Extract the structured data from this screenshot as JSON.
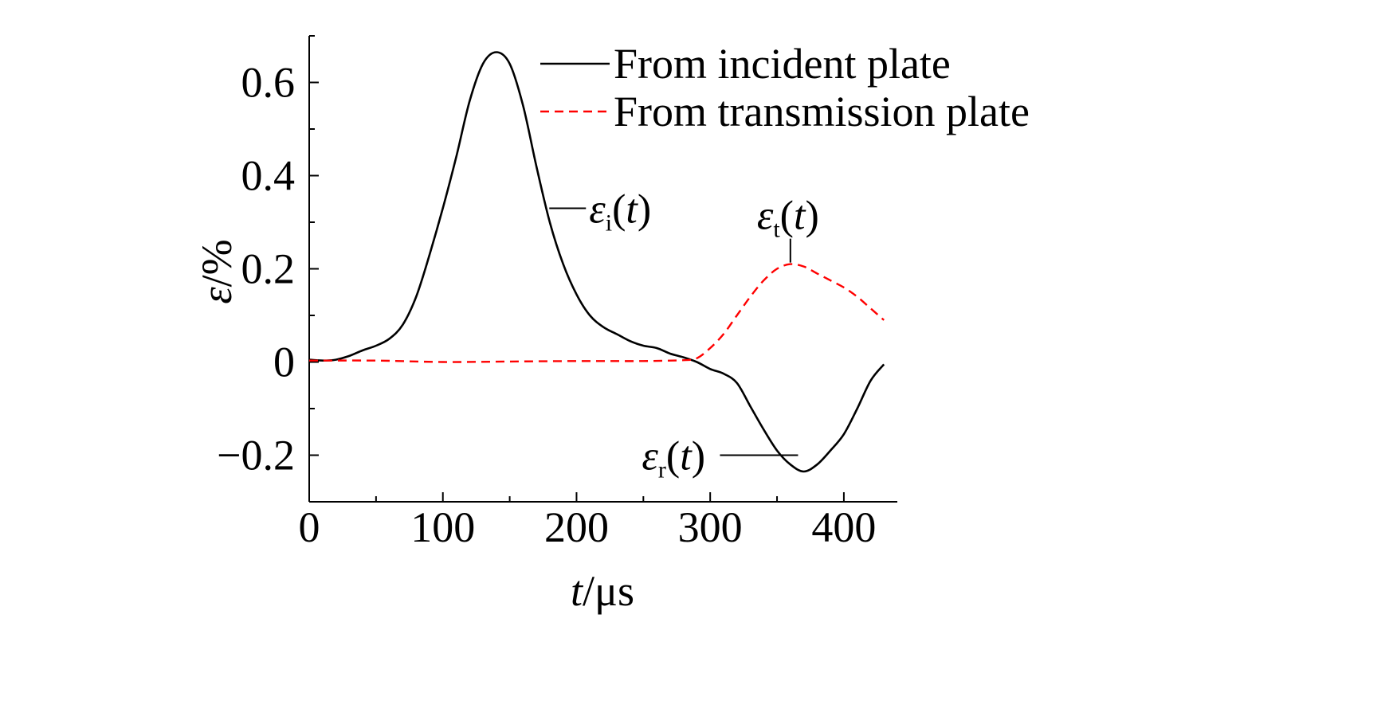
{
  "chart_data": {
    "type": "line",
    "xlim": [
      0,
      440
    ],
    "ylim": [
      -0.3,
      0.7
    ],
    "x_ticks": [
      0,
      100,
      200,
      300,
      400
    ],
    "x_tick_labels": [
      "0",
      "100",
      "200",
      "300",
      "400"
    ],
    "y_ticks": [
      -0.2,
      0,
      0.2,
      0.4,
      0.6
    ],
    "y_tick_labels": [
      "−0.2",
      "0",
      "0.2",
      "0.4",
      "0.6"
    ],
    "xlabel_var": "t",
    "xlabel_unit": "/μs",
    "ylabel_var": "ε",
    "ylabel_unit": "/%",
    "legend_placement": "top-right",
    "grid": false,
    "series": [
      {
        "name": "From incident plate",
        "color": "#000000",
        "dash": "solid",
        "points": [
          [
            0,
            0.005
          ],
          [
            10,
            0.003
          ],
          [
            20,
            0.005
          ],
          [
            30,
            0.013
          ],
          [
            40,
            0.025
          ],
          [
            50,
            0.035
          ],
          [
            60,
            0.05
          ],
          [
            70,
            0.08
          ],
          [
            80,
            0.14
          ],
          [
            90,
            0.23
          ],
          [
            100,
            0.33
          ],
          [
            110,
            0.44
          ],
          [
            120,
            0.56
          ],
          [
            130,
            0.64
          ],
          [
            140,
            0.665
          ],
          [
            150,
            0.64
          ],
          [
            160,
            0.55
          ],
          [
            170,
            0.42
          ],
          [
            180,
            0.3
          ],
          [
            190,
            0.21
          ],
          [
            200,
            0.145
          ],
          [
            210,
            0.1
          ],
          [
            220,
            0.075
          ],
          [
            230,
            0.06
          ],
          [
            240,
            0.045
          ],
          [
            250,
            0.035
          ],
          [
            260,
            0.03
          ],
          [
            270,
            0.018
          ],
          [
            280,
            0.01
          ],
          [
            290,
            0.0
          ],
          [
            300,
            -0.015
          ],
          [
            310,
            -0.025
          ],
          [
            320,
            -0.045
          ],
          [
            330,
            -0.095
          ],
          [
            340,
            -0.145
          ],
          [
            350,
            -0.19
          ],
          [
            360,
            -0.22
          ],
          [
            370,
            -0.235
          ],
          [
            380,
            -0.22
          ],
          [
            390,
            -0.19
          ],
          [
            400,
            -0.155
          ],
          [
            410,
            -0.1
          ],
          [
            420,
            -0.04
          ],
          [
            430,
            -0.005
          ]
        ]
      },
      {
        "name": "From transmission plate",
        "color": "#ff0000",
        "dash": "dashed",
        "points": [
          [
            0,
            0.003
          ],
          [
            50,
            0.003
          ],
          [
            100,
            0.0
          ],
          [
            150,
            0.001
          ],
          [
            200,
            0.002
          ],
          [
            250,
            0.002
          ],
          [
            280,
            0.004
          ],
          [
            290,
            0.008
          ],
          [
            300,
            0.03
          ],
          [
            310,
            0.06
          ],
          [
            320,
            0.1
          ],
          [
            330,
            0.14
          ],
          [
            340,
            0.175
          ],
          [
            350,
            0.2
          ],
          [
            360,
            0.21
          ],
          [
            370,
            0.205
          ],
          [
            380,
            0.19
          ],
          [
            390,
            0.175
          ],
          [
            400,
            0.16
          ],
          [
            410,
            0.14
          ],
          [
            420,
            0.115
          ],
          [
            430,
            0.09
          ]
        ]
      }
    ],
    "annotations": [
      {
        "symbol": "ε",
        "sub": "i",
        "arg": "(t)",
        "x": 182,
        "y": 0.33
      },
      {
        "symbol": "ε",
        "sub": "t",
        "arg": "(t)",
        "x": 360,
        "y": 0.21
      },
      {
        "symbol": "ε",
        "sub": "r",
        "arg": "(t)",
        "x": 355,
        "y": -0.2
      }
    ]
  }
}
